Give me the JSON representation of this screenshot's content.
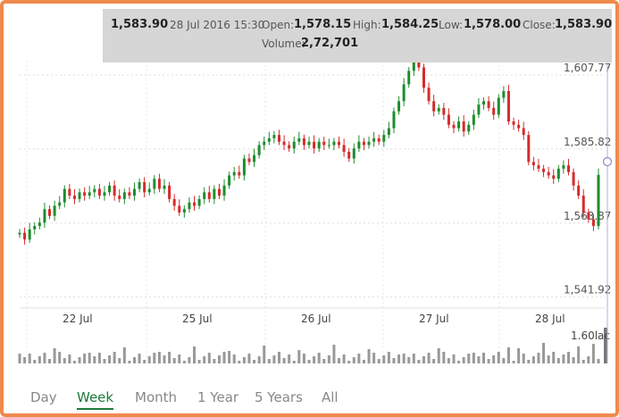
{
  "tooltip": {
    "price": "1,583.90",
    "datetime": "28 Jul 2016 15:30",
    "open_label": "Open:",
    "open": "1,578.15",
    "high_label": "High:",
    "high": "1,584.25",
    "low_label": "Low:",
    "low": "1,578.00",
    "close_label": "Close:",
    "close": "1,583.90",
    "volume_label": "Volume:",
    "volume": "2,72,701"
  },
  "tabs": [
    {
      "label": "Day",
      "active": false
    },
    {
      "label": "Week",
      "active": true
    },
    {
      "label": "Month",
      "active": false
    },
    {
      "label": "1 Year",
      "active": false
    },
    {
      "label": "5 Years",
      "active": false
    },
    {
      "label": "All",
      "active": false
    }
  ],
  "colors": {
    "up": "#1e8c2e",
    "down": "#d62b2b",
    "volume": "#999999",
    "frame": "#f08a4b",
    "crosshair": "#b0b0e0"
  },
  "chart_data": {
    "type": "line",
    "subtype": "candlestick",
    "x_tick_labels": [
      "22 Jul",
      "25 Jul",
      "26 Jul",
      "27 Jul",
      "28 Jul"
    ],
    "y_tick_labels": [
      "1,607.77",
      "1,585.82",
      "1,563.87",
      "1,541.92"
    ],
    "y_ticks": [
      1607.77,
      1585.82,
      1563.87,
      1541.92
    ],
    "ylim": [
      1540,
      1612
    ],
    "volume_label": "1.60lac",
    "grid": true,
    "series": [
      {
        "values": [
          1561,
          1559,
          1562,
          1563,
          1564,
          1568,
          1566,
          1569,
          1570,
          1574,
          1572,
          1571,
          1573,
          1572,
          1573,
          1574,
          1572,
          1573,
          1575,
          1572,
          1571,
          1573,
          1572,
          1574,
          1576,
          1573,
          1574,
          1577,
          1574,
          1575,
          1571,
          1569,
          1567,
          1568,
          1570,
          1569,
          1571,
          1573,
          1571,
          1574,
          1572,
          1575,
          1578,
          1579,
          1578,
          1583,
          1582,
          1584,
          1587,
          1588,
          1589,
          1590,
          1588,
          1587,
          1586,
          1588,
          1589,
          1587,
          1588,
          1586,
          1588,
          1587,
          1587,
          1588,
          1587,
          1585,
          1583,
          1586,
          1588,
          1587,
          1588,
          1589,
          1588,
          1590,
          1592,
          1597,
          1600,
          1605,
          1609,
          1612,
          1610,
          1604,
          1600,
          1597,
          1598,
          1596,
          1593,
          1592,
          1594,
          1591,
          1593,
          1596,
          1599,
          1600,
          1598,
          1596,
          1601,
          1603,
          1594,
          1593,
          1592,
          1590,
          1582,
          1581,
          1580,
          1579,
          1578,
          1577,
          1580,
          1581,
          1579,
          1575,
          1572,
          1567,
          1565,
          1563,
          1578.15
        ]
      }
    ]
  }
}
